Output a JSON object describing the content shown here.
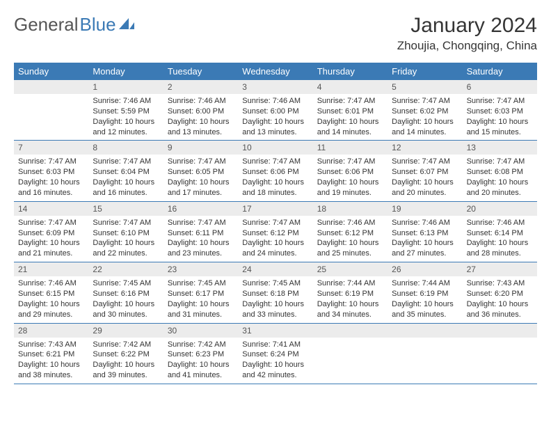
{
  "colors": {
    "header_bg": "#3b7ab5",
    "day_num_bg": "#ececec",
    "text": "#333333",
    "logo_gray": "#555555",
    "logo_blue": "#3b7ab5",
    "row_border": "#3b7ab5",
    "page_bg": "#ffffff"
  },
  "typography": {
    "month_title_fontsize": 30,
    "location_fontsize": 17,
    "weekday_fontsize": 13,
    "daynum_fontsize": 12,
    "body_fontsize": 11,
    "logo_fontsize": 26
  },
  "logo": {
    "part1": "General",
    "part2": "Blue"
  },
  "title": "January 2024",
  "location": "Zhoujia, Chongqing, China",
  "weekdays": [
    "Sunday",
    "Monday",
    "Tuesday",
    "Wednesday",
    "Thursday",
    "Friday",
    "Saturday"
  ],
  "weeks": [
    [
      null,
      {
        "n": "1",
        "sr": "Sunrise: 7:46 AM",
        "ss": "Sunset: 5:59 PM",
        "d1": "Daylight: 10 hours",
        "d2": "and 12 minutes."
      },
      {
        "n": "2",
        "sr": "Sunrise: 7:46 AM",
        "ss": "Sunset: 6:00 PM",
        "d1": "Daylight: 10 hours",
        "d2": "and 13 minutes."
      },
      {
        "n": "3",
        "sr": "Sunrise: 7:46 AM",
        "ss": "Sunset: 6:00 PM",
        "d1": "Daylight: 10 hours",
        "d2": "and 13 minutes."
      },
      {
        "n": "4",
        "sr": "Sunrise: 7:47 AM",
        "ss": "Sunset: 6:01 PM",
        "d1": "Daylight: 10 hours",
        "d2": "and 14 minutes."
      },
      {
        "n": "5",
        "sr": "Sunrise: 7:47 AM",
        "ss": "Sunset: 6:02 PM",
        "d1": "Daylight: 10 hours",
        "d2": "and 14 minutes."
      },
      {
        "n": "6",
        "sr": "Sunrise: 7:47 AM",
        "ss": "Sunset: 6:03 PM",
        "d1": "Daylight: 10 hours",
        "d2": "and 15 minutes."
      }
    ],
    [
      {
        "n": "7",
        "sr": "Sunrise: 7:47 AM",
        "ss": "Sunset: 6:03 PM",
        "d1": "Daylight: 10 hours",
        "d2": "and 16 minutes."
      },
      {
        "n": "8",
        "sr": "Sunrise: 7:47 AM",
        "ss": "Sunset: 6:04 PM",
        "d1": "Daylight: 10 hours",
        "d2": "and 16 minutes."
      },
      {
        "n": "9",
        "sr": "Sunrise: 7:47 AM",
        "ss": "Sunset: 6:05 PM",
        "d1": "Daylight: 10 hours",
        "d2": "and 17 minutes."
      },
      {
        "n": "10",
        "sr": "Sunrise: 7:47 AM",
        "ss": "Sunset: 6:06 PM",
        "d1": "Daylight: 10 hours",
        "d2": "and 18 minutes."
      },
      {
        "n": "11",
        "sr": "Sunrise: 7:47 AM",
        "ss": "Sunset: 6:06 PM",
        "d1": "Daylight: 10 hours",
        "d2": "and 19 minutes."
      },
      {
        "n": "12",
        "sr": "Sunrise: 7:47 AM",
        "ss": "Sunset: 6:07 PM",
        "d1": "Daylight: 10 hours",
        "d2": "and 20 minutes."
      },
      {
        "n": "13",
        "sr": "Sunrise: 7:47 AM",
        "ss": "Sunset: 6:08 PM",
        "d1": "Daylight: 10 hours",
        "d2": "and 20 minutes."
      }
    ],
    [
      {
        "n": "14",
        "sr": "Sunrise: 7:47 AM",
        "ss": "Sunset: 6:09 PM",
        "d1": "Daylight: 10 hours",
        "d2": "and 21 minutes."
      },
      {
        "n": "15",
        "sr": "Sunrise: 7:47 AM",
        "ss": "Sunset: 6:10 PM",
        "d1": "Daylight: 10 hours",
        "d2": "and 22 minutes."
      },
      {
        "n": "16",
        "sr": "Sunrise: 7:47 AM",
        "ss": "Sunset: 6:11 PM",
        "d1": "Daylight: 10 hours",
        "d2": "and 23 minutes."
      },
      {
        "n": "17",
        "sr": "Sunrise: 7:47 AM",
        "ss": "Sunset: 6:12 PM",
        "d1": "Daylight: 10 hours",
        "d2": "and 24 minutes."
      },
      {
        "n": "18",
        "sr": "Sunrise: 7:46 AM",
        "ss": "Sunset: 6:12 PM",
        "d1": "Daylight: 10 hours",
        "d2": "and 25 minutes."
      },
      {
        "n": "19",
        "sr": "Sunrise: 7:46 AM",
        "ss": "Sunset: 6:13 PM",
        "d1": "Daylight: 10 hours",
        "d2": "and 27 minutes."
      },
      {
        "n": "20",
        "sr": "Sunrise: 7:46 AM",
        "ss": "Sunset: 6:14 PM",
        "d1": "Daylight: 10 hours",
        "d2": "and 28 minutes."
      }
    ],
    [
      {
        "n": "21",
        "sr": "Sunrise: 7:46 AM",
        "ss": "Sunset: 6:15 PM",
        "d1": "Daylight: 10 hours",
        "d2": "and 29 minutes."
      },
      {
        "n": "22",
        "sr": "Sunrise: 7:45 AM",
        "ss": "Sunset: 6:16 PM",
        "d1": "Daylight: 10 hours",
        "d2": "and 30 minutes."
      },
      {
        "n": "23",
        "sr": "Sunrise: 7:45 AM",
        "ss": "Sunset: 6:17 PM",
        "d1": "Daylight: 10 hours",
        "d2": "and 31 minutes."
      },
      {
        "n": "24",
        "sr": "Sunrise: 7:45 AM",
        "ss": "Sunset: 6:18 PM",
        "d1": "Daylight: 10 hours",
        "d2": "and 33 minutes."
      },
      {
        "n": "25",
        "sr": "Sunrise: 7:44 AM",
        "ss": "Sunset: 6:19 PM",
        "d1": "Daylight: 10 hours",
        "d2": "and 34 minutes."
      },
      {
        "n": "26",
        "sr": "Sunrise: 7:44 AM",
        "ss": "Sunset: 6:19 PM",
        "d1": "Daylight: 10 hours",
        "d2": "and 35 minutes."
      },
      {
        "n": "27",
        "sr": "Sunrise: 7:43 AM",
        "ss": "Sunset: 6:20 PM",
        "d1": "Daylight: 10 hours",
        "d2": "and 36 minutes."
      }
    ],
    [
      {
        "n": "28",
        "sr": "Sunrise: 7:43 AM",
        "ss": "Sunset: 6:21 PM",
        "d1": "Daylight: 10 hours",
        "d2": "and 38 minutes."
      },
      {
        "n": "29",
        "sr": "Sunrise: 7:42 AM",
        "ss": "Sunset: 6:22 PM",
        "d1": "Daylight: 10 hours",
        "d2": "and 39 minutes."
      },
      {
        "n": "30",
        "sr": "Sunrise: 7:42 AM",
        "ss": "Sunset: 6:23 PM",
        "d1": "Daylight: 10 hours",
        "d2": "and 41 minutes."
      },
      {
        "n": "31",
        "sr": "Sunrise: 7:41 AM",
        "ss": "Sunset: 6:24 PM",
        "d1": "Daylight: 10 hours",
        "d2": "and 42 minutes."
      },
      null,
      null,
      null
    ]
  ]
}
